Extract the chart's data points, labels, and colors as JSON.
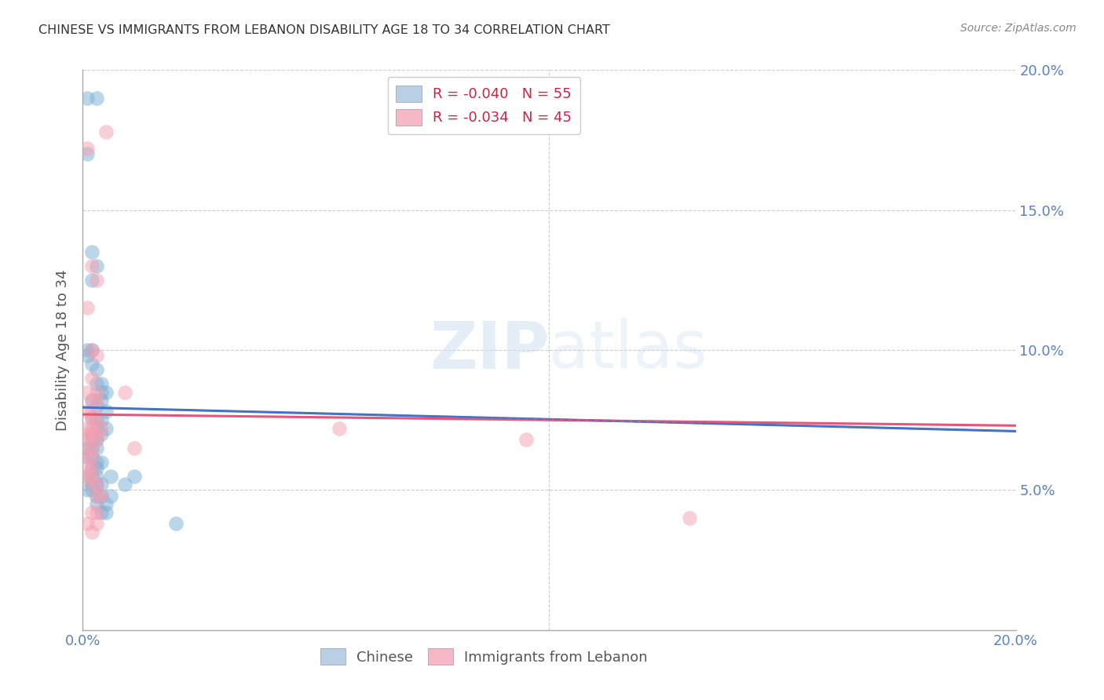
{
  "title": "CHINESE VS IMMIGRANTS FROM LEBANON DISABILITY AGE 18 TO 34 CORRELATION CHART",
  "source": "Source: ZipAtlas.com",
  "ylabel": "Disability Age 18 to 34",
  "xlim": [
    0.0,
    0.2
  ],
  "ylim": [
    0.0,
    0.2
  ],
  "xticks": [
    0.0,
    0.05,
    0.1,
    0.15,
    0.2
  ],
  "yticks": [
    0.0,
    0.05,
    0.1,
    0.15,
    0.2
  ],
  "watermark": "ZIPatlas",
  "chinese_color": "#7bafd4",
  "lebanon_color": "#f4a0b0",
  "line_chinese_color": "#4472C4",
  "line_lebanon_color": "#E8547A",
  "grid_color": "#cccccc",
  "background_color": "#ffffff",
  "chinese_line": [
    0.0,
    0.0795,
    0.2,
    0.071
  ],
  "lebanon_line": [
    0.0,
    0.077,
    0.2,
    0.073
  ],
  "chinese_points": [
    [
      0.001,
      0.19
    ],
    [
      0.003,
      0.19
    ],
    [
      0.001,
      0.17
    ],
    [
      0.002,
      0.135
    ],
    [
      0.003,
      0.13
    ],
    [
      0.002,
      0.125
    ],
    [
      0.001,
      0.1
    ],
    [
      0.002,
      0.1
    ],
    [
      0.001,
      0.098
    ],
    [
      0.002,
      0.095
    ],
    [
      0.003,
      0.093
    ],
    [
      0.003,
      0.088
    ],
    [
      0.004,
      0.088
    ],
    [
      0.004,
      0.085
    ],
    [
      0.005,
      0.085
    ],
    [
      0.002,
      0.082
    ],
    [
      0.004,
      0.082
    ],
    [
      0.003,
      0.08
    ],
    [
      0.005,
      0.078
    ],
    [
      0.002,
      0.076
    ],
    [
      0.003,
      0.075
    ],
    [
      0.004,
      0.075
    ],
    [
      0.003,
      0.072
    ],
    [
      0.005,
      0.072
    ],
    [
      0.002,
      0.07
    ],
    [
      0.004,
      0.07
    ],
    [
      0.002,
      0.068
    ],
    [
      0.003,
      0.068
    ],
    [
      0.001,
      0.065
    ],
    [
      0.002,
      0.065
    ],
    [
      0.003,
      0.065
    ],
    [
      0.001,
      0.062
    ],
    [
      0.002,
      0.062
    ],
    [
      0.003,
      0.06
    ],
    [
      0.004,
      0.06
    ],
    [
      0.002,
      0.058
    ],
    [
      0.003,
      0.058
    ],
    [
      0.001,
      0.055
    ],
    [
      0.002,
      0.055
    ],
    [
      0.003,
      0.055
    ],
    [
      0.002,
      0.052
    ],
    [
      0.003,
      0.052
    ],
    [
      0.004,
      0.052
    ],
    [
      0.001,
      0.05
    ],
    [
      0.002,
      0.05
    ],
    [
      0.003,
      0.048
    ],
    [
      0.004,
      0.048
    ],
    [
      0.003,
      0.045
    ],
    [
      0.005,
      0.045
    ],
    [
      0.004,
      0.042
    ],
    [
      0.005,
      0.042
    ],
    [
      0.006,
      0.055
    ],
    [
      0.006,
      0.048
    ],
    [
      0.009,
      0.052
    ],
    [
      0.011,
      0.055
    ],
    [
      0.02,
      0.038
    ]
  ],
  "lebanon_points": [
    [
      0.001,
      0.172
    ],
    [
      0.005,
      0.178
    ],
    [
      0.002,
      0.13
    ],
    [
      0.003,
      0.125
    ],
    [
      0.001,
      0.115
    ],
    [
      0.002,
      0.1
    ],
    [
      0.003,
      0.098
    ],
    [
      0.002,
      0.09
    ],
    [
      0.001,
      0.085
    ],
    [
      0.003,
      0.085
    ],
    [
      0.002,
      0.082
    ],
    [
      0.003,
      0.082
    ],
    [
      0.001,
      0.078
    ],
    [
      0.002,
      0.078
    ],
    [
      0.002,
      0.075
    ],
    [
      0.003,
      0.075
    ],
    [
      0.001,
      0.072
    ],
    [
      0.002,
      0.072
    ],
    [
      0.004,
      0.072
    ],
    [
      0.001,
      0.07
    ],
    [
      0.002,
      0.07
    ],
    [
      0.003,
      0.07
    ],
    [
      0.001,
      0.068
    ],
    [
      0.003,
      0.068
    ],
    [
      0.001,
      0.065
    ],
    [
      0.002,
      0.065
    ],
    [
      0.001,
      0.062
    ],
    [
      0.002,
      0.062
    ],
    [
      0.001,
      0.058
    ],
    [
      0.002,
      0.058
    ],
    [
      0.001,
      0.055
    ],
    [
      0.002,
      0.055
    ],
    [
      0.002,
      0.052
    ],
    [
      0.003,
      0.052
    ],
    [
      0.003,
      0.048
    ],
    [
      0.004,
      0.048
    ],
    [
      0.002,
      0.042
    ],
    [
      0.003,
      0.042
    ],
    [
      0.001,
      0.038
    ],
    [
      0.003,
      0.038
    ],
    [
      0.002,
      0.035
    ],
    [
      0.009,
      0.085
    ],
    [
      0.011,
      0.065
    ],
    [
      0.055,
      0.072
    ],
    [
      0.095,
      0.068
    ],
    [
      0.13,
      0.04
    ]
  ]
}
